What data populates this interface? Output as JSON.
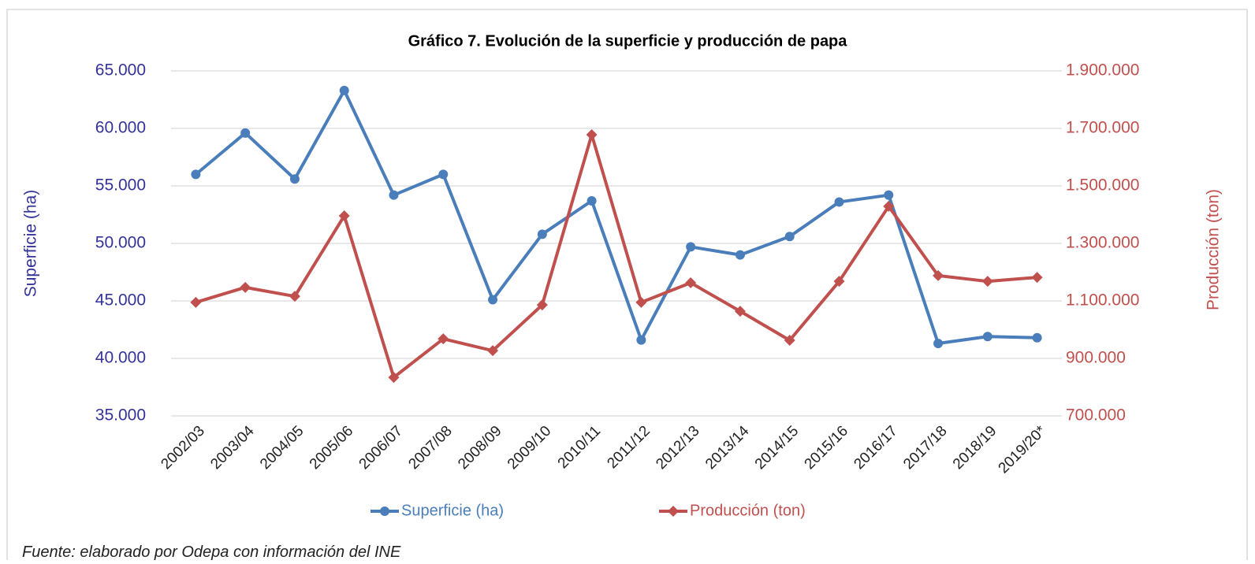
{
  "chart_data": {
    "type": "line",
    "title": "Gráfico 7. Evolución de la superficie y producción de papa",
    "ylabel": "Superficie (ha)",
    "y2label": "Producción (ton)",
    "categories": [
      "2002/03",
      "2003/04",
      "2004/05",
      "2005/06",
      "2006/07",
      "2007/08",
      "2008/09",
      "2009/10",
      "2010/11",
      "2011/12",
      "2012/13",
      "2013/14",
      "2014/15",
      "2015/16",
      "2016/17",
      "2017/18",
      "2018/19",
      "2019/20*"
    ],
    "series": [
      {
        "name": "Superficie (ha)",
        "color": "#4a7ebb",
        "marker": "circle",
        "axis": "y",
        "values": [
          56000,
          59600,
          55600,
          63300,
          54200,
          56000,
          45100,
          50800,
          53700,
          41600,
          49700,
          49000,
          50600,
          53600,
          54200,
          41300,
          41900,
          41800
        ]
      },
      {
        "name": "Producción (ton)",
        "color": "#c0504d",
        "marker": "diamond",
        "axis": "y2",
        "values": [
          1095000,
          1147000,
          1116000,
          1396000,
          834000,
          968000,
          927000,
          1086000,
          1678000,
          1095000,
          1163000,
          1064000,
          963000,
          1168000,
          1429000,
          1188000,
          1168000,
          1182000
        ]
      }
    ],
    "ylim": [
      35000,
      65000
    ],
    "yticks": [
      {
        "value": 35000,
        "label": "35.000"
      },
      {
        "value": 40000,
        "label": "40.000"
      },
      {
        "value": 45000,
        "label": "45.000"
      },
      {
        "value": 50000,
        "label": "50.000"
      },
      {
        "value": 55000,
        "label": "55.000"
      },
      {
        "value": 60000,
        "label": "60.000"
      },
      {
        "value": 65000,
        "label": "65.000"
      }
    ],
    "y2lim": [
      700000,
      1900000
    ],
    "y2ticks": [
      {
        "value": 700000,
        "label": "700.000"
      },
      {
        "value": 900000,
        "label": "900.000"
      },
      {
        "value": 1100000,
        "label": "1.100.000"
      },
      {
        "value": 1300000,
        "label": "1.300.000"
      },
      {
        "value": 1500000,
        "label": "1.500.000"
      },
      {
        "value": 1700000,
        "label": "1.700.000"
      },
      {
        "value": 1900000,
        "label": "1.900.000"
      }
    ],
    "grid": true,
    "legend": "bottom"
  },
  "source": "Fuente: elaborado por Odepa con información del INE"
}
